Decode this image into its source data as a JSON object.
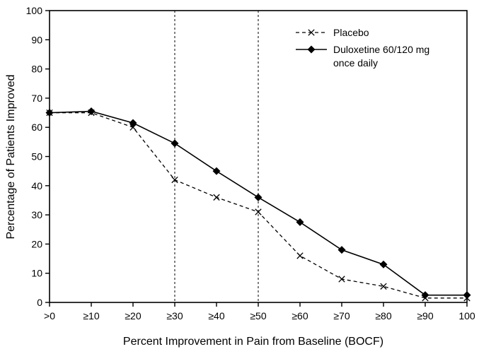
{
  "chart_data": {
    "type": "line",
    "title": "",
    "xlabel": "Percent Improvement in Pain from Baseline (BOCF)",
    "ylabel": "Percentage of Patients Improved",
    "categories": [
      ">0",
      "≥10",
      "≥20",
      "≥30",
      "≥40",
      "≥50",
      "≥60",
      "≥70",
      "≥80",
      "≥90",
      "100"
    ],
    "ylim": [
      0,
      100
    ],
    "yticks": [
      0,
      10,
      20,
      30,
      40,
      50,
      60,
      70,
      80,
      90,
      100
    ],
    "grid": false,
    "series": [
      {
        "name": "Placebo",
        "label_lines": [
          "Placebo"
        ],
        "marker": "x",
        "line": "dashed",
        "color": "#000000",
        "values": [
          65,
          65,
          60,
          42,
          36,
          31,
          16,
          8,
          5.5,
          1.5,
          1.5
        ]
      },
      {
        "name": "Duloxetine 60/120 mg once daily",
        "label_lines": [
          "Duloxetine 60/120 mg",
          "once daily"
        ],
        "marker": "diamond",
        "line": "solid",
        "color": "#000000",
        "values": [
          65,
          65.5,
          61.5,
          54.5,
          45,
          36,
          27.5,
          18,
          13,
          2.5,
          2.5
        ]
      }
    ],
    "reference_lines_x": [
      "≥30",
      "≥50"
    ],
    "legend": {
      "position": "top-right"
    },
    "frame_color": "#000000",
    "background_color": "#ffffff"
  }
}
